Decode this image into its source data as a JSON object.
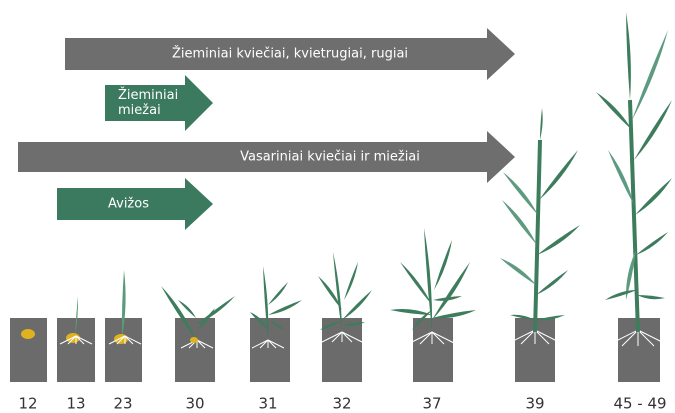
{
  "arrows": [
    {
      "lines": [
        "Žieminiai kviečiai, kvietrugiai, rugiai"
      ],
      "color": "#6e6e6e"
    },
    {
      "lines": [
        "Žieminiai",
        "miežai"
      ],
      "color": "#3b7a5f"
    },
    {
      "lines": [
        "Vasariniai kviečiai ir miežiai"
      ],
      "color": "#6e6e6e"
    },
    {
      "lines": [
        "Avižos"
      ],
      "color": "#3b7a5f"
    }
  ],
  "stages": [
    "12",
    "13",
    "23",
    "30",
    "31",
    "32",
    "37",
    "39",
    "45 - 49"
  ]
}
